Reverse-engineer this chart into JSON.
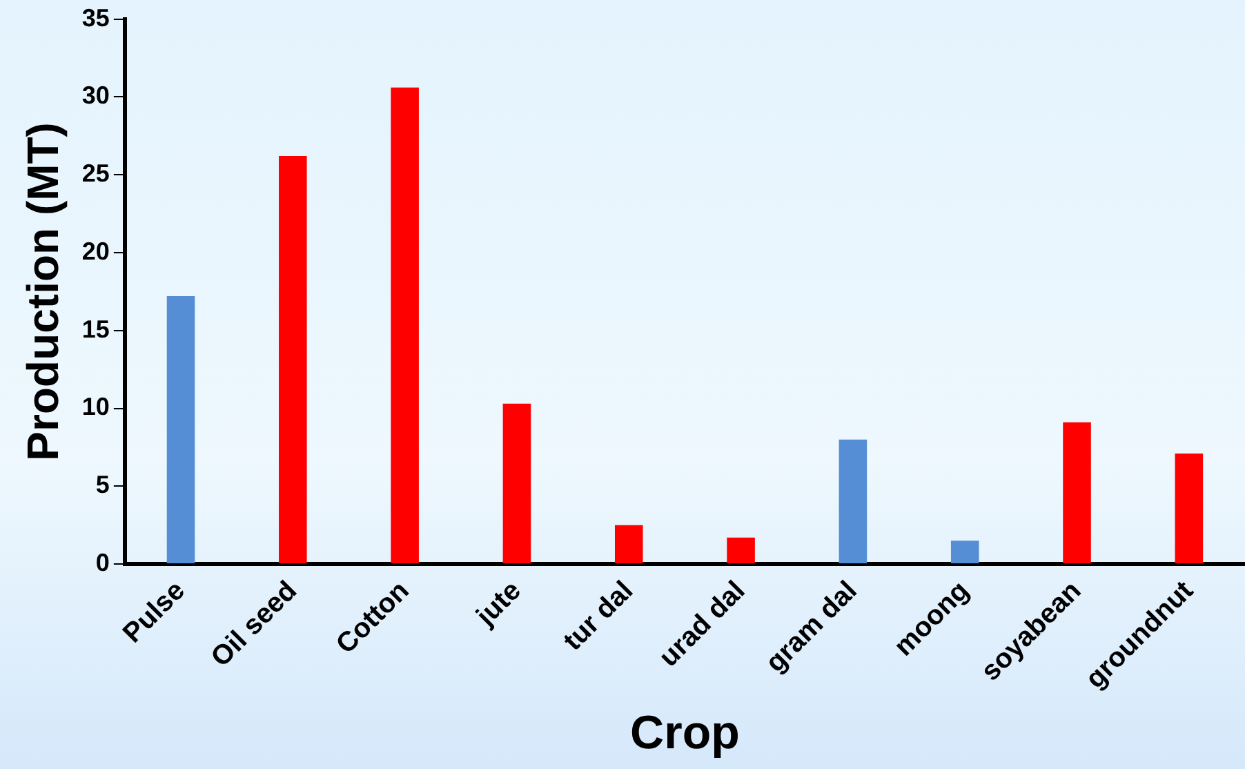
{
  "chart_data": {
    "type": "bar",
    "xlabel": "Crop",
    "ylabel": "Production (MT)",
    "categories": [
      "Pulse",
      "Oil seed",
      "Cotton",
      "jute",
      "tur dal",
      "urad dal",
      "gram dal",
      "moong",
      "soyabean",
      "groundnut"
    ],
    "values": [
      17.2,
      26.2,
      30.6,
      10.3,
      2.5,
      1.7,
      8.0,
      1.5,
      9.1,
      7.1
    ],
    "colors": [
      "#558ed5",
      "#ff0000",
      "#ff0000",
      "#ff0000",
      "#ff0000",
      "#ff0000",
      "#558ed5",
      "#558ed5",
      "#ff0000",
      "#ff0000"
    ],
    "ylim": [
      0,
      35
    ],
    "yticks": [
      0,
      5,
      10,
      15,
      20,
      25,
      30,
      35
    ],
    "grid": false,
    "legend": false
  }
}
